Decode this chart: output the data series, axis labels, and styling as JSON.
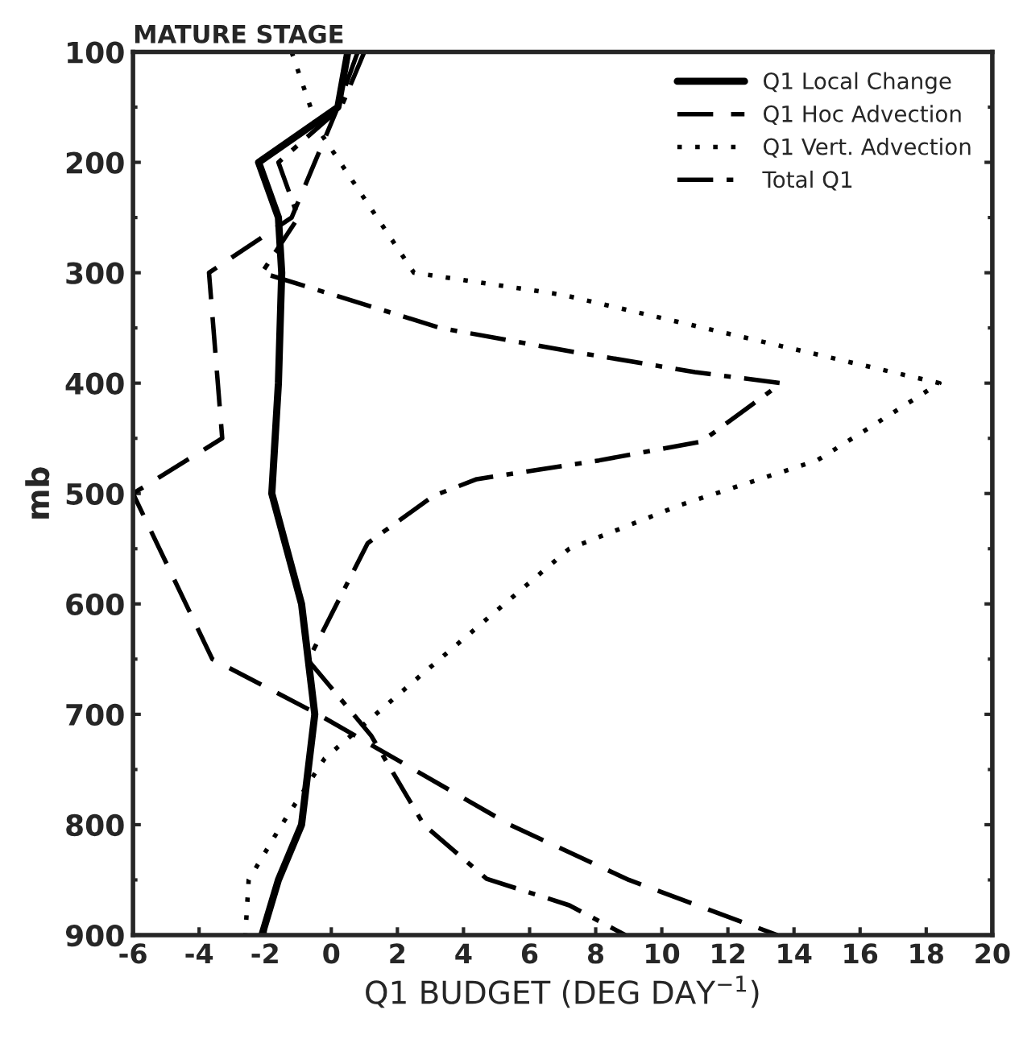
{
  "chart_data": {
    "type": "line",
    "title": "MATURE STAGE",
    "xlabel": "Q1 BUDGET (DEG DAY$^{−1}$)",
    "ylabel": "mb",
    "xlim": [
      -6,
      20
    ],
    "xticks": [
      -6,
      -4,
      -2,
      0,
      2,
      4,
      6,
      8,
      10,
      12,
      14,
      16,
      18,
      20
    ],
    "ylim": [
      900,
      100
    ],
    "yticks": [
      100,
      200,
      300,
      400,
      500,
      600,
      700,
      800,
      900
    ],
    "grid": false,
    "legend": "top right",
    "marker": "none",
    "series": [
      {
        "name": "Q1 Local Change",
        "color": "#000000",
        "line_style": "solid",
        "x": [
          0.5,
          0.2,
          -2.2,
          -1.6,
          -1.5,
          -1.6,
          -1.8,
          -0.9,
          -0.5,
          -0.9,
          -1.6,
          -2.1
        ],
        "values": [
          100,
          150,
          200,
          250,
          300,
          400,
          500,
          600,
          700,
          800,
          850,
          900
        ]
      },
      {
        "name": "Q1 Hoc Advection",
        "color": "#000000",
        "line_style": "dashed",
        "x": [
          0.8,
          0.2,
          -1.2,
          -3.7,
          -3.3,
          -6,
          -3.6,
          -0.4,
          5.4,
          9,
          13.5
        ],
        "values": [
          100,
          150,
          250,
          300,
          450,
          500,
          650,
          700,
          800,
          850,
          900
        ]
      },
      {
        "name": "Q1 Vert. Advection",
        "color": "#000000",
        "line_style": "dotted",
        "x": [
          -1.2,
          -0.4,
          2.5,
          7,
          18.4,
          16.3,
          14.7,
          10.6,
          7.2,
          2.5,
          -0.2,
          -1.5,
          -2.5,
          -2.6
        ],
        "values": [
          100,
          170,
          300,
          320,
          400,
          440,
          470,
          510,
          550,
          670,
          740,
          800,
          850,
          900
        ]
      },
      {
        "name": "Total Q1",
        "color": "#000000",
        "line_style": "dashdot",
        "x": [
          1.0,
          0.3,
          -1.6,
          -1.0,
          -2.1,
          3.3,
          7,
          11,
          13.6,
          13.3,
          11.2,
          8.1,
          4.4,
          3.1,
          1.1,
          -0.7,
          1.2,
          2.8,
          4.7,
          7.2,
          8.9
        ],
        "values": [
          100,
          150,
          200,
          250,
          300,
          350,
          370,
          390,
          400,
          407,
          453,
          470,
          487,
          502,
          545,
          651,
          719,
          800,
          849,
          873,
          900
        ]
      }
    ]
  }
}
